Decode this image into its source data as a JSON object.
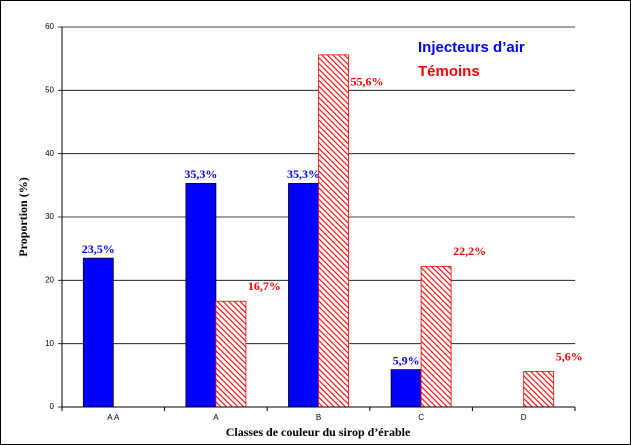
{
  "chart_data": {
    "type": "bar",
    "categories": [
      "A A",
      "A",
      "B",
      "C",
      "D"
    ],
    "series": [
      {
        "name": "Injecteurs d’air",
        "color": "#0000ff",
        "values": [
          23.5,
          35.3,
          35.3,
          5.9,
          null
        ],
        "value_labels": [
          "23,5%",
          "35,3%",
          "35,3%",
          "5,9%",
          null
        ]
      },
      {
        "name": "Témoins",
        "color": "#ff0000",
        "values": [
          null,
          16.7,
          55.6,
          22.2,
          5.6
        ],
        "value_labels": [
          null,
          "16,7%",
          "55,6%",
          "22,2%",
          "5,6%"
        ]
      }
    ],
    "ylabel": "Proportion (%)",
    "xlabel": "Classes de couleur du sirop d’érable",
    "ylim": [
      0,
      60
    ],
    "yticks": [
      0,
      10,
      20,
      30,
      40,
      50,
      60
    ],
    "grid": true
  }
}
